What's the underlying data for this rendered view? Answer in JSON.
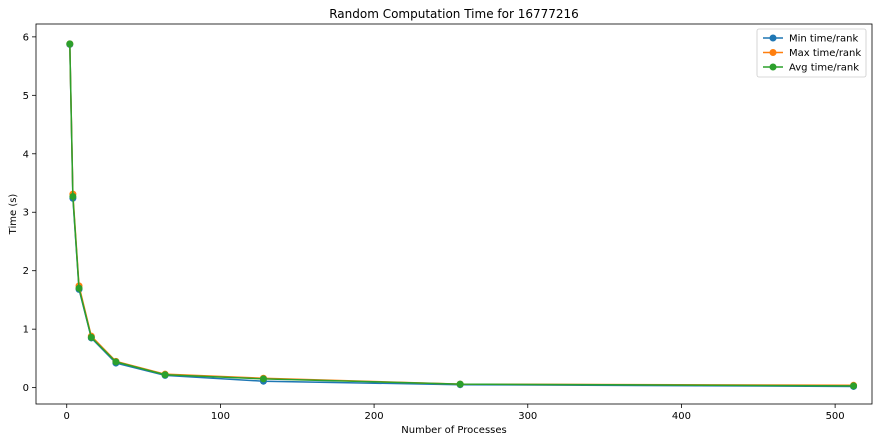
{
  "chart_data": {
    "type": "line",
    "title": "Random Computation Time for 16777216",
    "xlabel": "Number of Processes",
    "ylabel": "Time (s)",
    "xlim": [
      -20,
      524
    ],
    "ylim": [
      -0.28,
      6.22
    ],
    "xticks": [
      0,
      100,
      200,
      300,
      400,
      500
    ],
    "yticks": [
      0,
      1,
      2,
      3,
      4,
      5,
      6
    ],
    "x": [
      2,
      4,
      8,
      16,
      32,
      64,
      128,
      256,
      512
    ],
    "series": [
      {
        "name": "Min time/rank",
        "color": "#1f77b4",
        "values": [
          5.87,
          3.24,
          1.68,
          0.85,
          0.42,
          0.21,
          0.11,
          0.05,
          0.02
        ]
      },
      {
        "name": "Max time/rank",
        "color": "#ff7f0e",
        "values": [
          5.88,
          3.31,
          1.74,
          0.88,
          0.45,
          0.23,
          0.16,
          0.06,
          0.04
        ]
      },
      {
        "name": "Avg time/rank",
        "color": "#2ca02c",
        "values": [
          5.88,
          3.27,
          1.7,
          0.86,
          0.44,
          0.22,
          0.15,
          0.06,
          0.03
        ]
      }
    ],
    "legend_position": "top-right",
    "grid": false
  }
}
